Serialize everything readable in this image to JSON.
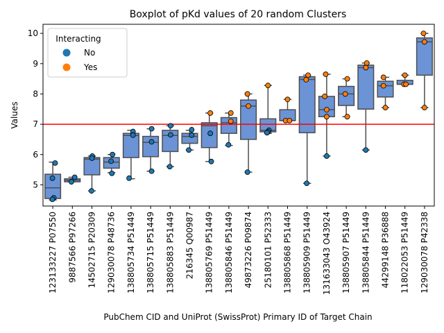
{
  "chart_data": {
    "type": "box",
    "title": "Boxplot of pKd values of 20 random Clusters",
    "xlabel": "PubChem CID and UniProt (SwissProt) Primary ID of Target Chain",
    "ylabel": "Values",
    "ylim": [
      4.3,
      10.3
    ],
    "yticks": [
      5,
      6,
      7,
      8,
      9,
      10
    ],
    "threshold": 7.0,
    "threshold_color": "#ff0000",
    "box_color": "#6b93d6",
    "legend": {
      "title": "Interacting",
      "position": "top-left",
      "items": [
        {
          "label": "No",
          "color": "#1f77b4"
        },
        {
          "label": "Yes",
          "color": "#ff7f0e"
        }
      ]
    },
    "categories": [
      "123133227 P07550",
      "9887566 P97266",
      "14502715 P20309",
      "129030078 P48736",
      "138805734 P51449",
      "138805715 P51449",
      "138805883 P51449",
      "216345 Q00987",
      "138805769 P51449",
      "138805846 P51449",
      "49873226 P09874",
      "25180101 P52333",
      "138805868 P51449",
      "138805909 P51449",
      "131633043 O43924",
      "138805907 P51449",
      "138805844 P51449",
      "44299148 P36888",
      "118022053 P51449",
      "129030078 P42338"
    ],
    "boxes": [
      {
        "q1": 4.55,
        "median": 4.9,
        "q3": 5.35,
        "wmin": 4.5,
        "wmax": 5.75
      },
      {
        "q1": 5.1,
        "median": 5.15,
        "q3": 5.2,
        "wmin": 5.1,
        "wmax": 5.25
      },
      {
        "q1": 5.33,
        "median": 5.85,
        "q3": 5.9,
        "wmin": 4.8,
        "wmax": 5.95
      },
      {
        "q1": 5.55,
        "median": 5.75,
        "q3": 5.9,
        "wmin": 5.4,
        "wmax": 6.0
      },
      {
        "q1": 5.9,
        "median": 6.63,
        "q3": 6.7,
        "wmin": 5.2,
        "wmax": 6.8
      },
      {
        "q1": 5.93,
        "median": 6.4,
        "q3": 6.6,
        "wmin": 5.45,
        "wmax": 6.85
      },
      {
        "q1": 6.1,
        "median": 6.63,
        "q3": 6.8,
        "wmin": 5.6,
        "wmax": 6.95
      },
      {
        "q1": 6.37,
        "median": 6.6,
        "q3": 6.7,
        "wmin": 6.15,
        "wmax": 6.8
      },
      {
        "q1": 6.23,
        "median": 6.95,
        "q3": 7.05,
        "wmin": 5.77,
        "wmax": 7.37
      },
      {
        "q1": 6.7,
        "median": 7.05,
        "q3": 7.22,
        "wmin": 6.3,
        "wmax": 7.37
      },
      {
        "q1": 6.5,
        "median": 7.6,
        "q3": 7.8,
        "wmin": 5.42,
        "wmax": 8.0
      },
      {
        "q1": 6.75,
        "median": 6.8,
        "q3": 7.18,
        "wmin": 6.7,
        "wmax": 8.28
      },
      {
        "q1": 7.12,
        "median": 7.12,
        "q3": 7.48,
        "wmin": 7.1,
        "wmax": 7.82
      },
      {
        "q1": 6.72,
        "median": 8.48,
        "q3": 8.57,
        "wmin": 5.05,
        "wmax": 8.62
      },
      {
        "q1": 7.25,
        "median": 7.48,
        "q3": 7.92,
        "wmin": 5.95,
        "wmax": 8.65
      },
      {
        "q1": 7.62,
        "median": 8.0,
        "q3": 8.25,
        "wmin": 7.25,
        "wmax": 8.5
      },
      {
        "q1": 7.5,
        "median": 8.87,
        "q3": 8.95,
        "wmin": 6.15,
        "wmax": 9.02
      },
      {
        "q1": 7.9,
        "median": 8.27,
        "q3": 8.42,
        "wmin": 7.55,
        "wmax": 8.55
      },
      {
        "q1": 8.32,
        "median": 8.32,
        "q3": 8.45,
        "wmin": 8.32,
        "wmax": 8.62
      },
      {
        "q1": 8.62,
        "median": 9.72,
        "q3": 9.85,
        "wmin": 7.55,
        "wmax": 10.0
      }
    ],
    "points": [
      {
        "i": 0,
        "y": 5.72,
        "interacting": "No",
        "dx": 0.12
      },
      {
        "i": 0,
        "y": 5.22,
        "interacting": "No",
        "dx": -0.02
      },
      {
        "i": 0,
        "y": 4.57,
        "interacting": "No",
        "dx": 0.05
      },
      {
        "i": 0,
        "y": 4.52,
        "interacting": "No",
        "dx": -0.02
      },
      {
        "i": 1,
        "y": 5.25,
        "interacting": "No",
        "dx": 0.12
      },
      {
        "i": 1,
        "y": 5.1,
        "interacting": "No",
        "dx": -0.05
      },
      {
        "i": 2,
        "y": 5.95,
        "interacting": "No",
        "dx": 0.02
      },
      {
        "i": 2,
        "y": 5.88,
        "interacting": "No",
        "dx": 0.0
      },
      {
        "i": 2,
        "y": 4.8,
        "interacting": "No",
        "dx": -0.02
      },
      {
        "i": 3,
        "y": 6.0,
        "interacting": "No",
        "dx": 0.05
      },
      {
        "i": 3,
        "y": 5.78,
        "interacting": "No",
        "dx": -0.02
      },
      {
        "i": 3,
        "y": 5.38,
        "interacting": "No",
        "dx": 0.02
      },
      {
        "i": 4,
        "y": 6.76,
        "interacting": "No",
        "dx": 0.1
      },
      {
        "i": 4,
        "y": 6.64,
        "interacting": "No",
        "dx": 0.1
      },
      {
        "i": 4,
        "y": 5.22,
        "interacting": "No",
        "dx": -0.1
      },
      {
        "i": 5,
        "y": 6.85,
        "interacting": "No",
        "dx": 0.05
      },
      {
        "i": 5,
        "y": 6.42,
        "interacting": "No",
        "dx": 0.05
      },
      {
        "i": 5,
        "y": 5.45,
        "interacting": "No",
        "dx": 0.05
      },
      {
        "i": 6,
        "y": 6.95,
        "interacting": "No",
        "dx": 0.02
      },
      {
        "i": 6,
        "y": 6.65,
        "interacting": "No",
        "dx": 0.02
      },
      {
        "i": 6,
        "y": 5.6,
        "interacting": "No",
        "dx": -0.02
      },
      {
        "i": 7,
        "y": 6.82,
        "interacting": "No",
        "dx": 0.1
      },
      {
        "i": 7,
        "y": 6.64,
        "interacting": "No",
        "dx": 0.1
      },
      {
        "i": 7,
        "y": 6.15,
        "interacting": "No",
        "dx": -0.05
      },
      {
        "i": 8,
        "y": 7.37,
        "interacting": "Yes",
        "dx": 0.05
      },
      {
        "i": 8,
        "y": 6.7,
        "interacting": "No",
        "dx": 0.05
      },
      {
        "i": 8,
        "y": 5.77,
        "interacting": "No",
        "dx": 0.1
      },
      {
        "i": 9,
        "y": 7.37,
        "interacting": "Yes",
        "dx": 0.1
      },
      {
        "i": 9,
        "y": 7.1,
        "interacting": "Yes",
        "dx": 0.1
      },
      {
        "i": 9,
        "y": 6.32,
        "interacting": "No",
        "dx": -0.02
      },
      {
        "i": 10,
        "y": 8.0,
        "interacting": "Yes",
        "dx": -0.05
      },
      {
        "i": 10,
        "y": 7.6,
        "interacting": "Yes",
        "dx": 0.0
      },
      {
        "i": 10,
        "y": 5.42,
        "interacting": "No",
        "dx": -0.05
      },
      {
        "i": 11,
        "y": 8.28,
        "interacting": "Yes",
        "dx": 0.0
      },
      {
        "i": 11,
        "y": 6.8,
        "interacting": "No",
        "dx": 0.05
      },
      {
        "i": 11,
        "y": 6.75,
        "interacting": "No",
        "dx": 0.0
      },
      {
        "i": 11,
        "y": 6.72,
        "interacting": "No",
        "dx": -0.05
      },
      {
        "i": 12,
        "y": 7.82,
        "interacting": "Yes",
        "dx": 0.0
      },
      {
        "i": 12,
        "y": 7.12,
        "interacting": "Yes",
        "dx": -0.1
      },
      {
        "i": 12,
        "y": 7.12,
        "interacting": "Yes",
        "dx": 0.1
      },
      {
        "i": 13,
        "y": 8.62,
        "interacting": "Yes",
        "dx": 0.05
      },
      {
        "i": 13,
        "y": 8.47,
        "interacting": "Yes",
        "dx": -0.05
      },
      {
        "i": 13,
        "y": 5.05,
        "interacting": "No",
        "dx": -0.02
      },
      {
        "i": 14,
        "y": 8.65,
        "interacting": "Yes",
        "dx": -0.05
      },
      {
        "i": 14,
        "y": 7.92,
        "interacting": "Yes",
        "dx": -0.1
      },
      {
        "i": 14,
        "y": 7.48,
        "interacting": "Yes",
        "dx": 0.0
      },
      {
        "i": 14,
        "y": 7.25,
        "interacting": "Yes",
        "dx": 0.0
      },
      {
        "i": 14,
        "y": 5.95,
        "interacting": "No",
        "dx": 0.0
      },
      {
        "i": 15,
        "y": 8.5,
        "interacting": "Yes",
        "dx": 0.05
      },
      {
        "i": 15,
        "y": 8.0,
        "interacting": "Yes",
        "dx": -0.05
      },
      {
        "i": 15,
        "y": 7.25,
        "interacting": "Yes",
        "dx": 0.05
      },
      {
        "i": 16,
        "y": 9.02,
        "interacting": "Yes",
        "dx": 0.05
      },
      {
        "i": 16,
        "y": 8.87,
        "interacting": "Yes",
        "dx": 0.0
      },
      {
        "i": 16,
        "y": 6.15,
        "interacting": "No",
        "dx": 0.0
      },
      {
        "i": 17,
        "y": 8.55,
        "interacting": "Yes",
        "dx": -0.1
      },
      {
        "i": 17,
        "y": 8.27,
        "interacting": "Yes",
        "dx": -0.1
      },
      {
        "i": 17,
        "y": 7.55,
        "interacting": "Yes",
        "dx": 0.0
      },
      {
        "i": 18,
        "y": 8.62,
        "interacting": "Yes",
        "dx": 0.0
      },
      {
        "i": 18,
        "y": 8.32,
        "interacting": "Yes",
        "dx": -0.05
      },
      {
        "i": 18,
        "y": 8.32,
        "interacting": "Yes",
        "dx": 0.05
      },
      {
        "i": 19,
        "y": 10.0,
        "interacting": "Yes",
        "dx": -0.05
      },
      {
        "i": 19,
        "y": 9.72,
        "interacting": "Yes",
        "dx": 0.0
      },
      {
        "i": 19,
        "y": 7.55,
        "interacting": "Yes",
        "dx": 0.0
      }
    ]
  }
}
